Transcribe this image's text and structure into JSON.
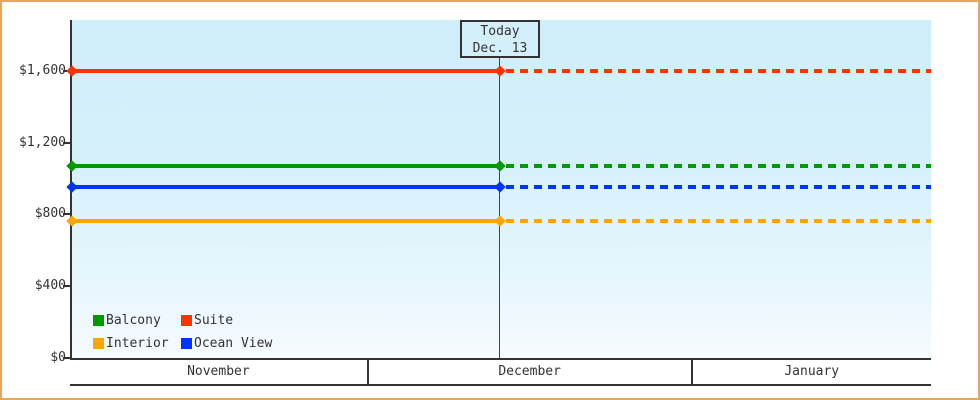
{
  "frame": {
    "border_color": "#e8a65c",
    "background": "#ffffff"
  },
  "chart_data": {
    "type": "line",
    "description": "Cruise cabin price chart: horizontal price lines per cabin category, solid before today, dashed after today",
    "x_axis": {
      "months": [
        "November",
        "December",
        "January"
      ],
      "month_width_fractions": [
        0.347,
        0.376,
        0.277
      ]
    },
    "y_axis": {
      "ylim": [
        0,
        1600
      ],
      "plot_top_value": 1884,
      "ticks": [
        {
          "label": "$0",
          "value": 0
        },
        {
          "label": "$400",
          "value": 400
        },
        {
          "label": "$800",
          "value": 800
        },
        {
          "label": "$1,200",
          "value": 1200
        },
        {
          "label": "$1,600",
          "value": 1600
        }
      ]
    },
    "today": {
      "line1": "Today",
      "line2": "Dec. 13",
      "x_fraction": 0.498
    },
    "series": [
      {
        "name": "Suite",
        "color": "#ff3300",
        "value": 1600
      },
      {
        "name": "Balcony",
        "color": "#009900",
        "value": 1070
      },
      {
        "name": "Ocean View",
        "color": "#0033ff",
        "value": 955
      },
      {
        "name": "Interior",
        "color": "#ffa500",
        "value": 765
      }
    ],
    "legend": {
      "position": "bottom-left",
      "items": [
        {
          "label": "Balcony",
          "color": "#009900"
        },
        {
          "label": "Suite",
          "color": "#ff3300"
        },
        {
          "label": "Interior",
          "color": "#ffa500"
        },
        {
          "label": "Ocean View",
          "color": "#0033ff"
        }
      ]
    },
    "line_style": {
      "solid_before_today": true,
      "dashed_after_today": true,
      "marker": "diamond"
    }
  }
}
